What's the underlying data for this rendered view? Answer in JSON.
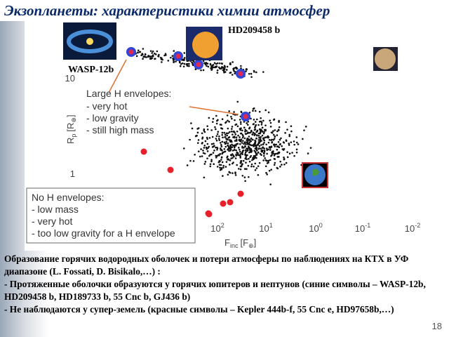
{
  "header": {
    "title": "Экзопланеты: характеристики химии атмосфер"
  },
  "figure": {
    "labels": {
      "hd": "HD209458 b",
      "wasp": "WASP-12b"
    },
    "large": {
      "title": "Large H envelopes:",
      "items": [
        "- very hot",
        "- low gravity",
        "- still high mass"
      ]
    },
    "none": {
      "title": "No H envelopes:",
      "items": [
        "- low mass",
        "- very hot",
        "- too low gravity for a H envelope"
      ]
    },
    "y_axis": {
      "symbol": "R",
      "sub": "p",
      "unit": "[R",
      "unit_sub": "⊕",
      "close": "]",
      "ticks": [
        "10",
        "1"
      ]
    },
    "x_axis": {
      "symbol": "F",
      "sub": "inc",
      "unit": "[F",
      "unit_sub": "⊕",
      "close": "]",
      "ticks": [
        {
          "base": "10",
          "exp": "2"
        },
        {
          "base": "10",
          "exp": "1"
        },
        {
          "base": "10",
          "exp": "0"
        },
        {
          "base": "10",
          "exp": "-1"
        },
        {
          "base": "10",
          "exp": "-2"
        }
      ]
    }
  },
  "body": {
    "paragraphs": [
      "Образование горячих водородных оболочек и потери атмосферы по наблюдениях на КТХ в УФ диапазоне (L. Fossati, D. Bisikalo,…) :",
      "- Протяженные оболочки образуются у горячих юпитеров и нептунов (синие символы – WASP-12b, HD209458 b, HD189733 b, 55 Cnc b, GJ436 b)",
      "- Не наблюдаются у супер-земель (красные символы – Kepler 444b-f, 55 Cnc e, HD97658b,…)"
    ]
  },
  "page_number": "18"
}
